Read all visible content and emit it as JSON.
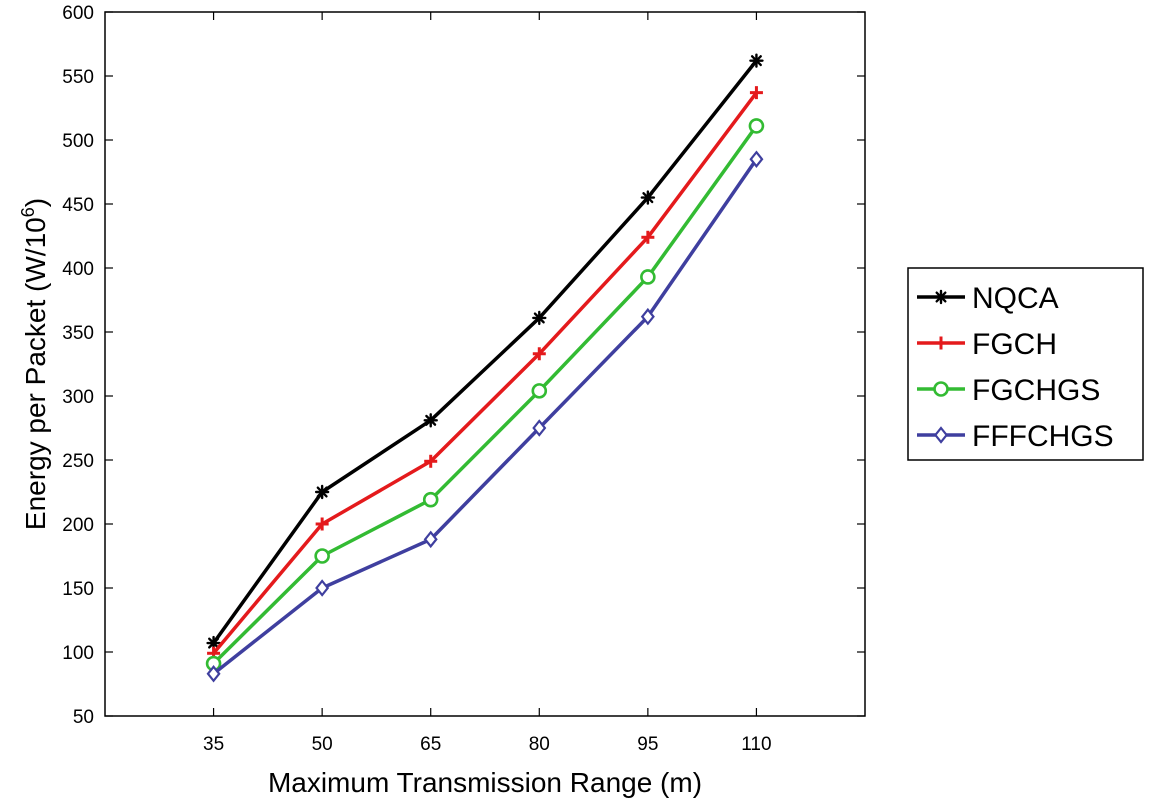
{
  "chart_data": {
    "type": "line",
    "title": "",
    "xlabel": "Maximum Transmission Range (m)",
    "ylabel_main": "Energy per Packet (W/10",
    "ylabel_sup": "6",
    "ylabel_close": ")",
    "x": [
      35,
      50,
      65,
      80,
      95,
      110
    ],
    "xlim": [
      20,
      125
    ],
    "ylim": [
      50,
      600
    ],
    "yticks": [
      50,
      100,
      150,
      200,
      250,
      300,
      350,
      400,
      450,
      500,
      550,
      600
    ],
    "legend_position": "outside-right",
    "series": [
      {
        "name": "NQCA",
        "color": "#000000",
        "marker": "star",
        "values": [
          107,
          225,
          281,
          361,
          455,
          562
        ]
      },
      {
        "name": "FGCH",
        "color": "#e41a1c",
        "marker": "plus",
        "values": [
          99,
          200,
          249,
          333,
          424,
          537
        ]
      },
      {
        "name": "FGCHGS",
        "color": "#33bb33",
        "marker": "circle",
        "values": [
          91,
          175,
          219,
          304,
          393,
          511
        ]
      },
      {
        "name": "FFFCHGS",
        "color": "#3f3f9f",
        "marker": "diamond",
        "values": [
          83,
          150,
          188,
          275,
          362,
          485
        ]
      }
    ]
  }
}
